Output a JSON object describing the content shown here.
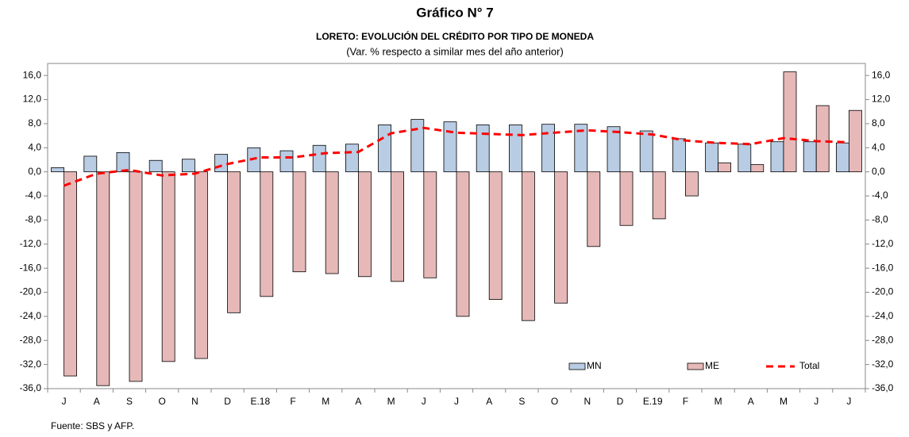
{
  "chart_data": {
    "type": "bar",
    "title": "Gráfico N° 7",
    "subtitle": "LORETO: EVOLUCIÓN DEL CRÉDITO POR TIPO DE MONEDA",
    "note": "(Var. % respecto a similar mes del año anterior)",
    "source": "Fuente: SBS y AFP.",
    "categories": [
      "J",
      "A",
      "S",
      "O",
      "N",
      "D",
      "E.18",
      "F",
      "M",
      "A",
      "M",
      "J",
      "J",
      "A",
      "S",
      "O",
      "N",
      "D",
      "E.19",
      "F",
      "M",
      "A",
      "M",
      "J",
      "J"
    ],
    "series": [
      {
        "name": "MN",
        "type": "bar",
        "color": "#b8cce4",
        "values": [
          0.7,
          2.6,
          3.2,
          1.9,
          2.1,
          2.9,
          4.0,
          3.5,
          4.4,
          4.6,
          7.8,
          8.7,
          8.3,
          7.8,
          7.8,
          7.9,
          7.9,
          7.5,
          6.8,
          5.5,
          4.8,
          4.6,
          5.0,
          5.0,
          4.8
        ]
      },
      {
        "name": "ME",
        "type": "bar",
        "color": "#e6b9b8",
        "values": [
          -33.9,
          -35.5,
          -34.8,
          -31.5,
          -31.0,
          -23.4,
          -20.7,
          -16.6,
          -16.9,
          -17.4,
          -18.2,
          -17.6,
          -24.0,
          -21.2,
          -24.7,
          -21.8,
          -12.4,
          -8.9,
          -7.8,
          -4.0,
          1.5,
          1.2,
          16.6,
          11.0,
          10.2
        ]
      },
      {
        "name": "Total",
        "type": "line",
        "color": "#ff0000",
        "values": [
          -2.3,
          -0.3,
          0.3,
          -0.6,
          -0.3,
          1.3,
          2.4,
          2.4,
          3.1,
          3.3,
          6.4,
          7.3,
          6.5,
          6.3,
          6.1,
          6.5,
          6.9,
          6.6,
          6.2,
          5.2,
          4.8,
          4.6,
          5.6,
          5.1,
          4.9
        ]
      }
    ],
    "ylim": [
      -36,
      18
    ],
    "yticks": [
      {
        "value": 16,
        "label": "16,0"
      },
      {
        "value": 12,
        "label": "12,0"
      },
      {
        "value": 8,
        "label": "8,0"
      },
      {
        "value": 4,
        "label": "4,0"
      },
      {
        "value": 0,
        "label": "0,0"
      },
      {
        "value": -4,
        "label": "-4,0"
      },
      {
        "value": -8,
        "label": "-8,0"
      },
      {
        "value": -12,
        "label": "-12,0"
      },
      {
        "value": -16,
        "label": "-16,0"
      },
      {
        "value": -20,
        "label": "-20,0"
      },
      {
        "value": -24,
        "label": "-24,0"
      },
      {
        "value": -28,
        "label": "-28,0"
      },
      {
        "value": -32,
        "label": "-32,0"
      },
      {
        "value": -36,
        "label": "-36,0"
      }
    ],
    "y2lim": [
      -36,
      18
    ],
    "y2ticks": [
      {
        "value": 16,
        "label": "16,0"
      },
      {
        "value": 12,
        "label": "12,0"
      },
      {
        "value": 8,
        "label": "8,0"
      },
      {
        "value": 4,
        "label": "4,0"
      },
      {
        "value": 0,
        "label": "0,0"
      },
      {
        "value": -4,
        "label": "-4,0"
      },
      {
        "value": -8,
        "label": "-8,0"
      },
      {
        "value": -12,
        "label": "-12,0"
      },
      {
        "value": -16,
        "label": "-16,0"
      },
      {
        "value": -20,
        "label": "-20,0"
      },
      {
        "value": -24,
        "label": "-24,0"
      },
      {
        "value": -28,
        "label": "-28,0"
      },
      {
        "value": -32,
        "label": "-32,0"
      },
      {
        "value": -36,
        "label": "-36,0"
      }
    ],
    "legend": "lower-right"
  }
}
